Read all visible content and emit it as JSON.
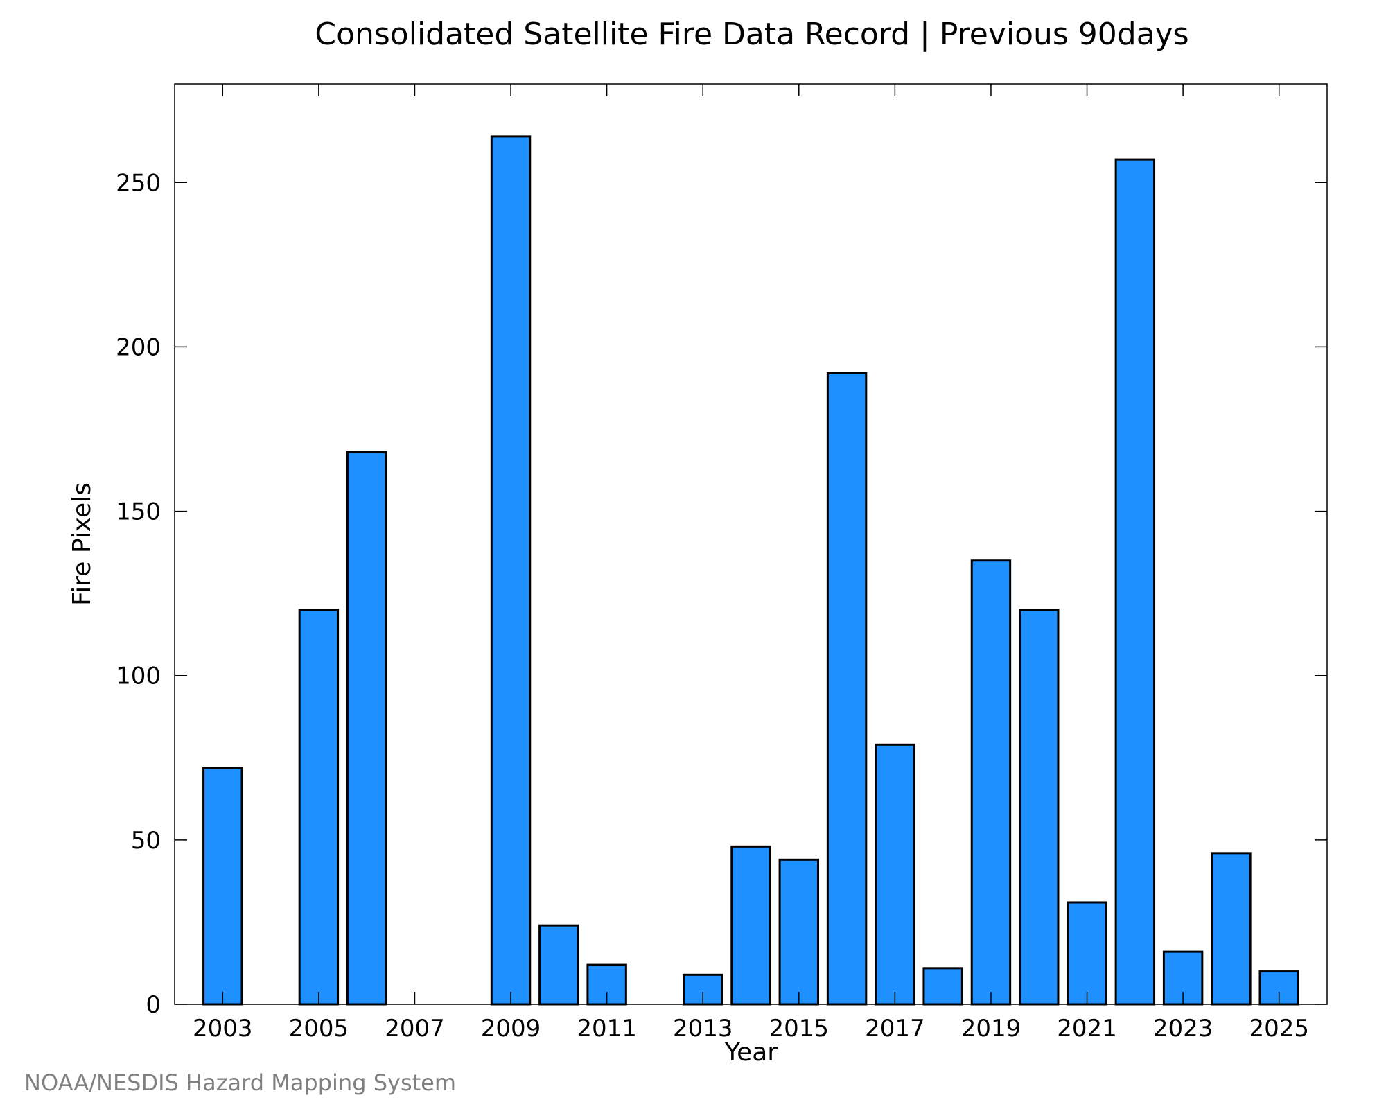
{
  "chart_data": {
    "type": "bar",
    "title": "Consolidated Satellite Fire Data Record | Previous 90days",
    "xlabel": "Year",
    "ylabel": "Fire Pixels",
    "x": [
      2003,
      2004,
      2005,
      2006,
      2007,
      2008,
      2009,
      2010,
      2011,
      2012,
      2013,
      2014,
      2015,
      2016,
      2017,
      2018,
      2019,
      2020,
      2021,
      2022,
      2023,
      2024,
      2025
    ],
    "values": [
      72,
      0,
      120,
      168,
      0,
      0,
      264,
      24,
      12,
      0,
      9,
      48,
      44,
      192,
      79,
      11,
      135,
      120,
      31,
      257,
      16,
      46,
      10
    ],
    "xlim": [
      2002.0,
      2026.0
    ],
    "ylim": [
      0,
      280
    ],
    "xticks": [
      "2003",
      "2005",
      "2007",
      "2009",
      "2011",
      "2013",
      "2015",
      "2017",
      "2019",
      "2021",
      "2023",
      "2025"
    ],
    "yticks": [
      "0",
      "50",
      "100",
      "150",
      "200",
      "250"
    ],
    "grid": false,
    "legend": "none",
    "bar_color": "#1e90ff",
    "bar_edge_color": "#000000"
  },
  "credit": "NOAA/NESDIS Hazard Mapping System"
}
